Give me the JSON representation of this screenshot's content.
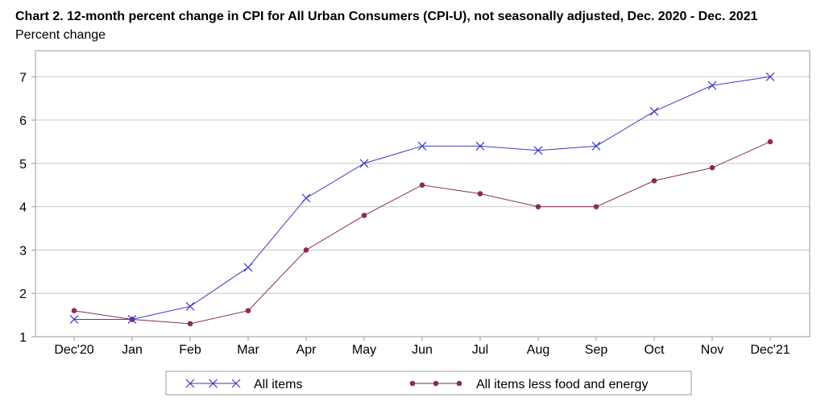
{
  "chart_data": {
    "type": "line",
    "title": "Chart 2. 12-month percent change in CPI for All Urban Consumers (CPI-U), not seasonally adjusted, Dec. 2020 - Dec. 2021",
    "ylabel": "Percent change",
    "xlabel": "",
    "categories": [
      "Dec'20",
      "Jan",
      "Feb",
      "Mar",
      "Apr",
      "May",
      "Jun",
      "Jul",
      "Aug",
      "Sep",
      "Oct",
      "Nov",
      "Dec'21"
    ],
    "ylim": [
      1,
      7.6
    ],
    "yticks": [
      1,
      2,
      3,
      4,
      5,
      6,
      7
    ],
    "grid": true,
    "legend_position": "bottom",
    "series": [
      {
        "name": "All items",
        "color": "#3b3bc8",
        "marker": "x",
        "values": [
          1.4,
          1.4,
          1.7,
          2.6,
          4.2,
          5.0,
          5.4,
          5.4,
          5.3,
          5.4,
          6.2,
          6.8,
          7.0
        ]
      },
      {
        "name": "All items less food and energy",
        "color": "#8b2a5a",
        "marker": "dot",
        "values": [
          1.6,
          1.4,
          1.3,
          1.6,
          3.0,
          3.8,
          4.5,
          4.3,
          4.0,
          4.0,
          4.6,
          4.9,
          5.5
        ]
      }
    ]
  }
}
